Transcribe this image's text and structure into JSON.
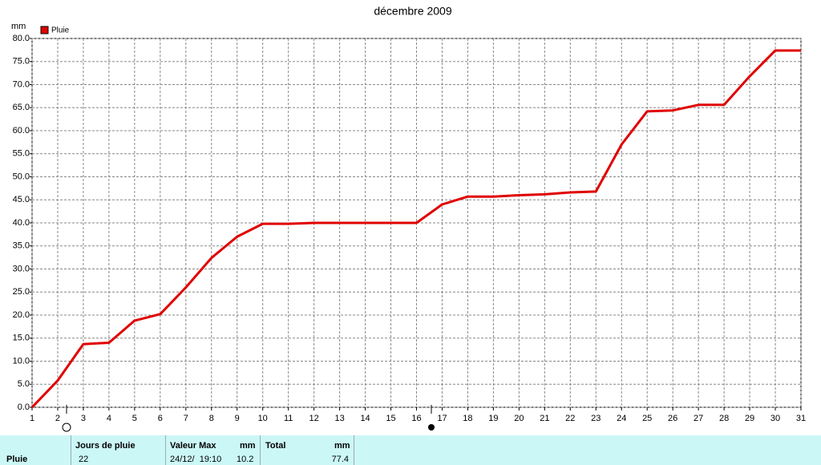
{
  "chart_data": {
    "type": "line",
    "title": "décembre 2009",
    "y_label": "mm",
    "x": [
      1,
      2,
      3,
      4,
      5,
      6,
      7,
      8,
      9,
      10,
      11,
      12,
      13,
      14,
      15,
      16,
      17,
      18,
      19,
      20,
      21,
      22,
      23,
      24,
      25,
      26,
      27,
      28,
      29,
      30,
      31
    ],
    "series": [
      {
        "name": "Pluie",
        "color": "#e00000",
        "values": [
          0,
          5.8,
          13.7,
          14,
          18.8,
          20.2,
          26,
          32.4,
          37,
          39.8,
          39.8,
          40,
          40,
          40,
          40,
          40,
          44,
          45.7,
          45.7,
          46,
          46.2,
          46.6,
          46.8,
          57,
          64.2,
          64.4,
          65.6,
          65.6,
          71.8,
          77.4,
          77.4
        ]
      }
    ],
    "xlim": [
      1,
      31
    ],
    "xticks": [
      1,
      2,
      3,
      4,
      5,
      6,
      7,
      8,
      9,
      10,
      11,
      12,
      13,
      14,
      15,
      16,
      17,
      18,
      19,
      20,
      21,
      22,
      23,
      24,
      25,
      26,
      27,
      28,
      29,
      30,
      31
    ],
    "ylim": [
      0,
      80
    ],
    "yticks": [
      {
        "value": 0,
        "label": "0.0"
      },
      {
        "value": 5,
        "label": "5.0"
      },
      {
        "value": 10,
        "label": "10.0"
      },
      {
        "value": 15,
        "label": "15.0"
      },
      {
        "value": 20,
        "label": "20.0"
      },
      {
        "value": 25,
        "label": "25.0"
      },
      {
        "value": 30,
        "label": "30.0"
      },
      {
        "value": 35,
        "label": "35.0"
      },
      {
        "value": 40,
        "label": "40.0"
      },
      {
        "value": 45,
        "label": "45.0"
      },
      {
        "value": 50,
        "label": "50.0"
      },
      {
        "value": 55,
        "label": "55.0"
      },
      {
        "value": 60,
        "label": "60.0"
      },
      {
        "value": 65,
        "label": "65.0"
      },
      {
        "value": 70,
        "label": "70.0"
      },
      {
        "value": 75,
        "label": "75.0"
      },
      {
        "value": 80,
        "label": "80.0"
      }
    ],
    "grid": true,
    "legend": "top-left"
  },
  "summary": {
    "row_label": "Pluie",
    "headers": [
      {
        "label": "Jours de pluie"
      },
      {
        "label": "Valeur Max",
        "unit": "mm"
      },
      {
        "label": "Total",
        "unit": "mm"
      }
    ],
    "cells": [
      "22",
      "24/12/  19:10",
      "10.2",
      "77.4"
    ]
  }
}
